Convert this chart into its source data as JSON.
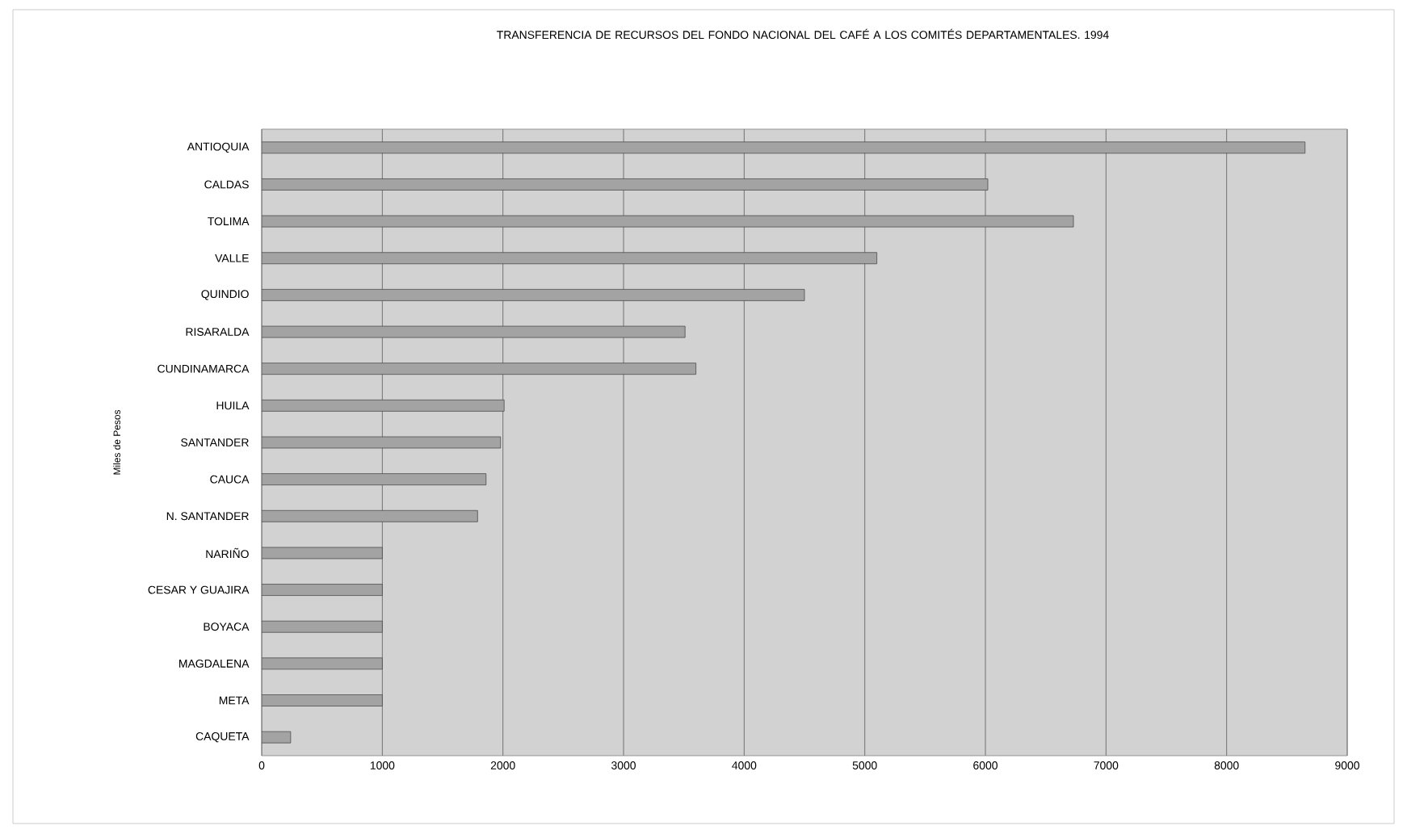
{
  "chart_data": {
    "type": "bar",
    "orientation": "horizontal",
    "title": "TRANSFERENCIA DE RECURSOS DEL FONDO NACIONAL DEL CAFÉ A LOS COMITÉS DEPARTAMENTALES. 1994",
    "ylabel": "Miles de Pesos",
    "categories": [
      "ANTIOQUIA",
      "CALDAS",
      "TOLIMA",
      "VALLE",
      "QUINDIO",
      "RISARALDA",
      "CUNDINAMARCA",
      "HUILA",
      "SANTANDER",
      "CAUCA",
      "N. SANTANDER",
      "NARIÑO",
      "CESAR Y GUAJIRA",
      "BOYACA",
      "MAGDALENA",
      "META",
      "CAQUETA"
    ],
    "values": [
      8650,
      6020,
      6730,
      5100,
      4500,
      3510,
      3600,
      2010,
      1980,
      1860,
      1790,
      1000,
      1000,
      1000,
      1000,
      1000,
      240
    ],
    "color": "#a3a3a3",
    "xlim": [
      0,
      9000
    ],
    "xticks": [
      0,
      1000,
      2000,
      3000,
      4000,
      5000,
      6000,
      7000,
      8000,
      9000
    ],
    "grid": "x"
  }
}
